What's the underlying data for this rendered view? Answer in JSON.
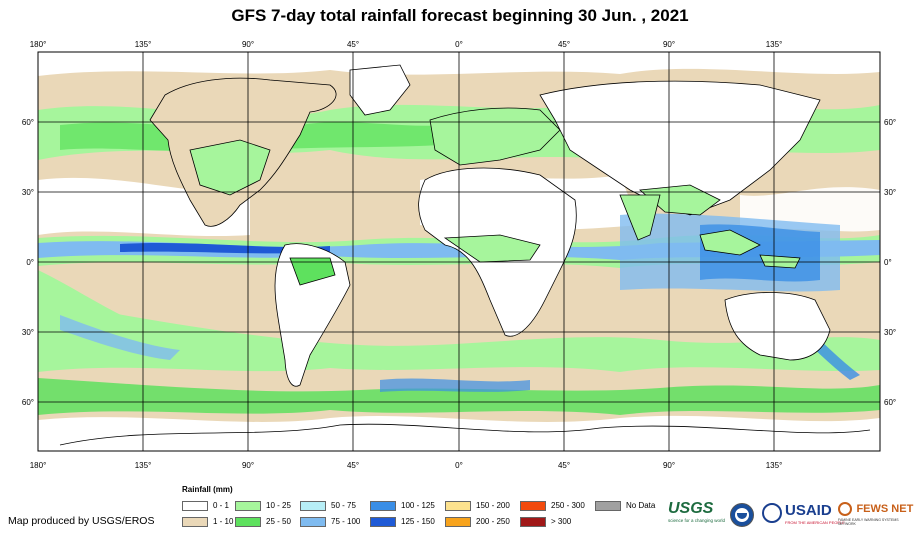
{
  "title": "GFS 7-day total rainfall forecast beginning 30 Jun. , 2021",
  "axes": {
    "lon_labels": [
      "180°",
      "135°",
      "90°",
      "45°",
      "0°",
      "45°",
      "90°",
      "135°"
    ],
    "lat_labels": [
      "60°",
      "30°",
      "0°",
      "30°",
      "60°"
    ]
  },
  "legend": {
    "title": "Rainfall (mm)",
    "items": [
      {
        "label": "0 - 1",
        "color": "#ffffff"
      },
      {
        "label": "1 - 10",
        "color": "#ead8b8"
      },
      {
        "label": "10 - 25",
        "color": "#a6f59c"
      },
      {
        "label": "25 - 50",
        "color": "#5ee15e"
      },
      {
        "label": "50 - 75",
        "color": "#b7eef6"
      },
      {
        "label": "75 - 100",
        "color": "#7fbbf0"
      },
      {
        "label": "100 - 125",
        "color": "#3a8ee6"
      },
      {
        "label": "125 - 150",
        "color": "#1f5ad6"
      },
      {
        "label": "150 - 200",
        "color": "#fde28e"
      },
      {
        "label": "200 - 250",
        "color": "#f7a31c"
      },
      {
        "label": "250 - 300",
        "color": "#f24a0d"
      },
      {
        "label": "> 300",
        "color": "#a01818"
      },
      {
        "label": "No Data",
        "color": "#a0a0a0"
      }
    ]
  },
  "credit": "Map produced by USGS/EROS",
  "logos": {
    "usgs": "USGS",
    "usgs_tagline": "science for a changing world",
    "usaid": "USAID",
    "usaid_tagline": "FROM THE AMERICAN PEOPLE",
    "fews": "FEWS NET",
    "fews_tagline": "FAMINE EARLY WARNING SYSTEMS NETWORK"
  }
}
